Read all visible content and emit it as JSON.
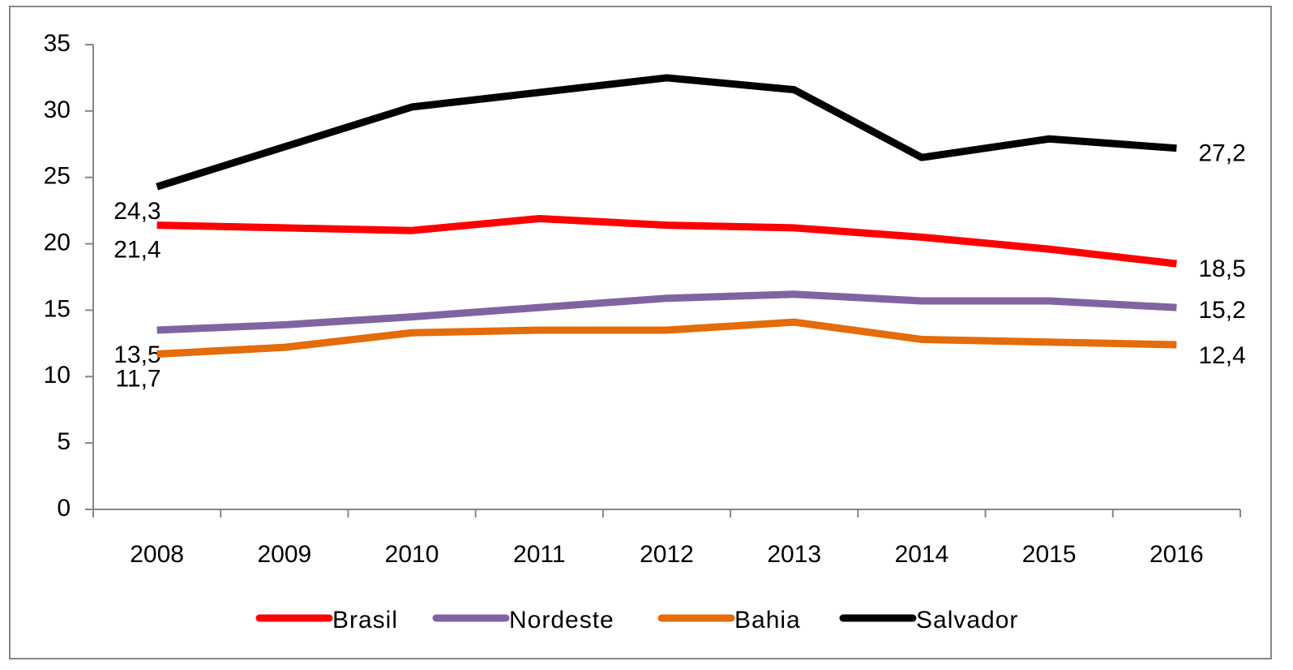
{
  "chart_data": {
    "type": "line",
    "categories": [
      "2008",
      "2009",
      "2010",
      "2011",
      "2012",
      "2013",
      "2014",
      "2015",
      "2016"
    ],
    "series": [
      {
        "name": "Brasil",
        "color": "#ff0000",
        "values": [
          21.4,
          21.2,
          21.0,
          21.9,
          21.4,
          21.2,
          20.5,
          19.6,
          18.5
        ],
        "value_labels": [
          "21,4",
          null,
          null,
          null,
          null,
          null,
          null,
          null,
          "18,5"
        ]
      },
      {
        "name": "Nordeste",
        "color": "#8064a2",
        "values": [
          13.5,
          13.9,
          14.5,
          15.2,
          15.9,
          16.2,
          15.7,
          15.7,
          15.2
        ],
        "value_labels": [
          "13,5",
          null,
          null,
          null,
          null,
          null,
          null,
          null,
          "15,2"
        ]
      },
      {
        "name": "Bahia",
        "color": "#e46c0a",
        "values": [
          11.7,
          12.2,
          13.3,
          13.5,
          13.5,
          14.1,
          12.8,
          12.6,
          12.4
        ],
        "value_labels": [
          "11,7",
          null,
          null,
          null,
          null,
          null,
          null,
          null,
          "12,4"
        ]
      },
      {
        "name": "Salvador",
        "color": "#000000",
        "values": [
          24.3,
          27.3,
          30.3,
          31.4,
          32.5,
          31.6,
          26.5,
          27.9,
          27.2
        ],
        "value_labels": [
          "24,3",
          null,
          null,
          null,
          null,
          null,
          null,
          null,
          "27,2"
        ]
      }
    ],
    "ylim": [
      0,
      35
    ],
    "yticks": [
      0,
      5,
      10,
      15,
      20,
      25,
      30,
      35
    ],
    "legend": "bottom"
  }
}
